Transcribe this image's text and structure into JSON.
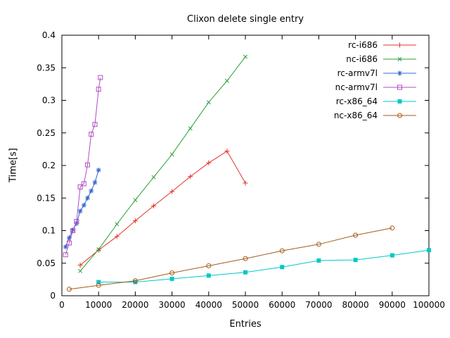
{
  "chart_data": {
    "type": "line",
    "title": "Clixon delete single entry",
    "xlabel": "Entries",
    "ylabel": "Time[s]",
    "xlim": [
      0,
      100000
    ],
    "ylim": [
      0,
      0.4
    ],
    "grid": false,
    "legend_position": "top-right-inside",
    "xticks": {
      "values": [
        0,
        10000,
        20000,
        30000,
        40000,
        50000,
        60000,
        70000,
        80000,
        90000,
        100000
      ],
      "labels": [
        "0",
        "10000",
        "20000",
        "30000",
        "40000",
        "50000",
        "60000",
        "70000",
        "80000",
        "90000",
        "100000"
      ]
    },
    "yticks": {
      "values": [
        0,
        0.05,
        0.1,
        0.15,
        0.2,
        0.25,
        0.3,
        0.35,
        0.4
      ],
      "labels": [
        "0",
        "0.05",
        "0.1",
        "0.15",
        "0.2",
        "0.25",
        "0.3",
        "0.35",
        "0.4"
      ]
    },
    "series": [
      {
        "name": "rc-i686",
        "color": "#e23324",
        "marker": "plus",
        "points": [
          [
            5000,
            0.047
          ],
          [
            10000,
            0.07
          ],
          [
            15000,
            0.091
          ],
          [
            20000,
            0.115
          ],
          [
            25000,
            0.138
          ],
          [
            30000,
            0.16
          ],
          [
            35000,
            0.183
          ],
          [
            40000,
            0.204
          ],
          [
            45000,
            0.222
          ],
          [
            50000,
            0.173
          ]
        ]
      },
      {
        "name": "nc-i686",
        "color": "#28a137",
        "marker": "cross",
        "points": [
          [
            5000,
            0.038
          ],
          [
            10000,
            0.071
          ],
          [
            15000,
            0.11
          ],
          [
            20000,
            0.147
          ],
          [
            25000,
            0.182
          ],
          [
            30000,
            0.217
          ],
          [
            35000,
            0.257
          ],
          [
            40000,
            0.297
          ],
          [
            45000,
            0.33
          ],
          [
            50000,
            0.367
          ]
        ]
      },
      {
        "name": "rc-armv7l",
        "color": "#3465cd",
        "marker": "asterisk",
        "points": [
          [
            1000,
            0.075
          ],
          [
            2000,
            0.089
          ],
          [
            3000,
            0.101
          ],
          [
            4000,
            0.111
          ],
          [
            5000,
            0.13
          ],
          [
            6000,
            0.139
          ],
          [
            7000,
            0.15
          ],
          [
            8000,
            0.161
          ],
          [
            9000,
            0.174
          ],
          [
            10000,
            0.193
          ]
        ]
      },
      {
        "name": "nc-armv7l",
        "color": "#b24bc8",
        "marker": "square-open",
        "points": [
          [
            1000,
            0.063
          ],
          [
            2000,
            0.081
          ],
          [
            3000,
            0.1
          ],
          [
            4000,
            0.114
          ],
          [
            5000,
            0.167
          ],
          [
            6000,
            0.172
          ],
          [
            7000,
            0.201
          ],
          [
            8000,
            0.248
          ],
          [
            9000,
            0.263
          ],
          [
            10000,
            0.317
          ],
          [
            10500,
            0.335
          ]
        ]
      },
      {
        "name": "rc-x86_64",
        "color": "#00c8c8",
        "marker": "square-filled",
        "points": [
          [
            10000,
            0.021
          ],
          [
            20000,
            0.021
          ],
          [
            30000,
            0.026
          ],
          [
            40000,
            0.031
          ],
          [
            50000,
            0.036
          ],
          [
            60000,
            0.044
          ],
          [
            70000,
            0.054
          ],
          [
            80000,
            0.055
          ],
          [
            90000,
            0.062
          ],
          [
            100000,
            0.07
          ]
        ]
      },
      {
        "name": "nc-x86_64",
        "color": "#a45a17",
        "marker": "circle-open",
        "points": [
          [
            2000,
            0.01
          ],
          [
            10000,
            0.016
          ],
          [
            20000,
            0.023
          ],
          [
            30000,
            0.035
          ],
          [
            40000,
            0.046
          ],
          [
            50000,
            0.057
          ],
          [
            60000,
            0.069
          ],
          [
            70000,
            0.079
          ],
          [
            80000,
            0.093
          ],
          [
            90000,
            0.104
          ]
        ]
      }
    ]
  }
}
